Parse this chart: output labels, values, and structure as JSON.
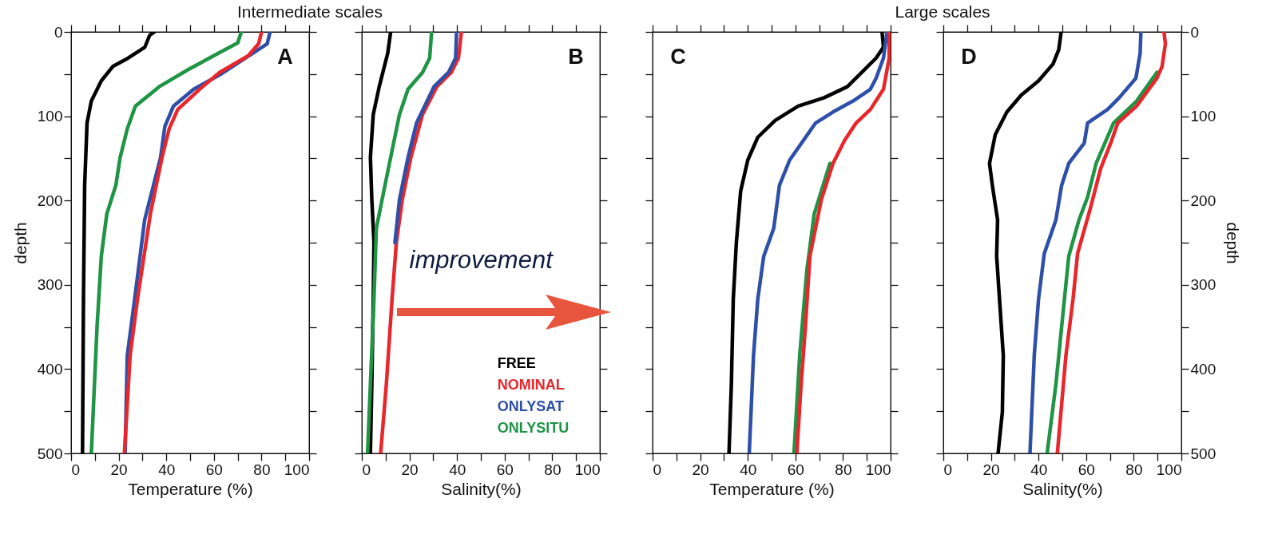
{
  "chart_data": [
    {
      "type": "line",
      "title": "Intermediate scales",
      "xlabel": "Temperature (%)",
      "ylabel": "depth",
      "annotations": [
        "A"
      ],
      "xlim": [
        0,
        100
      ],
      "xticks": [
        0,
        {
          "value": 10,
          "label": null
        },
        20,
        {
          "value": 30,
          "label": null
        },
        40,
        {
          "value": 50,
          "label": null
        },
        60,
        {
          "value": 70,
          "label": null
        },
        80,
        {
          "value": 90,
          "label": null
        },
        100
      ],
      "ylim": [
        500,
        0
      ],
      "yticks": [
        0,
        {
          "value": 50,
          "label": null
        },
        100,
        {
          "value": 150,
          "label": null
        },
        200,
        {
          "value": 250,
          "label": null
        },
        300,
        {
          "value": 350,
          "label": null
        },
        400,
        {
          "value": 450,
          "label": null
        },
        500
      ],
      "line_style": "solid",
      "marker": "none",
      "series": [
        {
          "color": "#000000",
          "x": [
            35,
            33,
            31,
            24,
            17.5,
            12.7,
            8.5,
            6.7,
            5.7,
            5.2,
            4.8
          ],
          "values": [
            0,
            4,
            18,
            31,
            41,
            58,
            82,
            108,
            182,
            317,
            500
          ]
        },
        {
          "color": "#1e9444",
          "x": [
            71.5,
            70,
            62,
            49,
            37,
            27,
            23.6,
            20.6,
            18.8,
            15,
            12.7,
            10.9,
            8.5
          ],
          "values": [
            0,
            13,
            25,
            45,
            65,
            88,
            115,
            149,
            182,
            216,
            266,
            350,
            500
          ]
        },
        {
          "color": "#2e4fa8",
          "x": [
            83.6,
            82.4,
            73.3,
            62.4,
            51.5,
            43,
            39.4,
            37.6,
            30.9,
            26.7,
            23.6,
            22.7
          ],
          "values": [
            0,
            14,
            31,
            51,
            68,
            88,
            112,
            149,
            223,
            317,
            384,
            500
          ]
        },
        {
          "color": "#e8262b",
          "x": [
            80,
            78.8,
            74.5,
            62.4,
            54,
            44.8,
            41.2,
            38.2,
            33.3,
            27.9,
            24.8,
            22.4
          ],
          "values": [
            0,
            14,
            28,
            48,
            68,
            92,
            115,
            149,
            216,
            317,
            384,
            500
          ]
        }
      ]
    },
    {
      "type": "line",
      "xlabel": "Salinity(%)",
      "annotations": [
        "B",
        "improvement"
      ],
      "tick_labels": "x",
      "legend": "bottom right",
      "xlim": [
        0,
        100
      ],
      "xticks": [
        0,
        {
          "value": 10,
          "label": null
        },
        20,
        {
          "value": 30,
          "label": null
        },
        40,
        {
          "value": 50,
          "label": null
        },
        60,
        {
          "value": 70,
          "label": null
        },
        80,
        {
          "value": 90,
          "label": null
        },
        100
      ],
      "ylim": [
        500,
        0
      ],
      "yticks": [
        0,
        {
          "value": 50,
          "label": null
        },
        100,
        {
          "value": 150,
          "label": null
        },
        200,
        {
          "value": 250,
          "label": null
        },
        300,
        {
          "value": 350,
          "label": null
        },
        400,
        {
          "value": 450,
          "label": null
        },
        500
      ],
      "line_style": "solid",
      "marker": "none",
      "series": [
        {
          "name": "FREE",
          "color": "#000000",
          "x": [
            12.1,
            10.9,
            7.3,
            4.8,
            3.6,
            4.2,
            5.1,
            4.8,
            4.2,
            3.6
          ],
          "values": [
            0,
            25,
            65,
            98,
            149,
            199,
            250,
            317,
            418,
            500
          ]
        },
        {
          "name": "NOMINAL",
          "color": "#e8262b",
          "x": [
            41.8,
            40.6,
            37.6,
            31.5,
            25.5,
            20.6,
            17,
            14.5,
            12.7,
            10.3,
            7.9
          ],
          "values": [
            0,
            31,
            48,
            65,
            98,
            149,
            199,
            250,
            317,
            418,
            500
          ]
        },
        {
          "name": "ONLYSAT",
          "color": "#2e4fa8",
          "x": [
            39.8,
            39.4,
            36.4,
            30.3,
            23,
            19.4,
            15.8,
            13.9
          ],
          "values": [
            0,
            31,
            48,
            65,
            108,
            149,
            199,
            250
          ]
        },
        {
          "name": "ONLYSITU",
          "color": "#1e9444",
          "x": [
            29.3,
            28.5,
            25.5,
            19.4,
            15.8,
            12.1,
            8.5,
            6.1,
            5.1,
            3.6,
            2.4
          ],
          "values": [
            0,
            31,
            48,
            68,
            98,
            149,
            199,
            233,
            317,
            418,
            500
          ]
        }
      ]
    },
    {
      "type": "line",
      "title": "Large scales",
      "xlabel": "Temperature (%)",
      "annotations": [
        "C"
      ],
      "tick_labels": "x",
      "xlim": [
        0,
        100
      ],
      "xticks": [
        0,
        {
          "value": 10,
          "label": null
        },
        20,
        {
          "value": 30,
          "label": null
        },
        40,
        {
          "value": 50,
          "label": null
        },
        60,
        {
          "value": 70,
          "label": null
        },
        80,
        {
          "value": 90,
          "label": null
        },
        100
      ],
      "ylim": [
        500,
        0
      ],
      "yticks": [
        0,
        {
          "value": 50,
          "label": null
        },
        100,
        {
          "value": 150,
          "label": null
        },
        200,
        {
          "value": 250,
          "label": null
        },
        300,
        {
          "value": 350,
          "label": null
        },
        400,
        {
          "value": 450,
          "label": null
        },
        500
      ],
      "line_style": "solid",
      "marker": "none",
      "series": [
        {
          "color": "#000000",
          "x": [
            96.4,
            97,
            93.9,
            87.9,
            81.8,
            72.1,
            61.2,
            51.5,
            44.2,
            40,
            37,
            35.2,
            33.9,
            33.1,
            32.1
          ],
          "values": [
            0,
            18,
            31,
            48,
            65,
            78,
            88,
            105,
            125,
            152,
            189,
            250,
            317,
            418,
            500
          ]
        },
        {
          "color": "#2e4fa8",
          "x": [
            98.5,
            97,
            93.9,
            91.5,
            84.2,
            75.8,
            68.5,
            57.6,
            53.3,
            50.9,
            46.7,
            44.2,
            42.4,
            40.6
          ],
          "values": [
            0,
            31,
            55,
            68,
            82,
            95,
            108,
            152,
            182,
            233,
            266,
            317,
            384,
            500
          ]
        },
        {
          "color": "#1e9444",
          "x": [
            74.5,
            67.9,
            64.8,
            61.8,
            59.4
          ],
          "values": [
            156,
            216,
            283,
            384,
            500
          ]
        },
        {
          "color": "#e8262b",
          "x": [
            99.4,
            99.4,
            97,
            91.5,
            85.5,
            80.6,
            75.8,
            70.9,
            66.1,
            64.2,
            62.4,
            60.6
          ],
          "values": [
            0,
            31,
            68,
            92,
            108,
            129,
            156,
            199,
            266,
            350,
            418,
            500
          ]
        }
      ]
    },
    {
      "type": "line",
      "xlabel": "Salinity(%)",
      "y2label": "depth",
      "annotations": [
        "D"
      ],
      "xlim": [
        0,
        100
      ],
      "xticks": [
        0,
        {
          "value": 10,
          "label": null
        },
        20,
        {
          "value": 30,
          "label": null
        },
        40,
        {
          "value": 50,
          "label": null
        },
        60,
        {
          "value": 70,
          "label": null
        },
        80,
        {
          "value": 90,
          "label": null
        },
        100
      ],
      "y2lim": [
        500,
        0
      ],
      "y2ticks": [
        0,
        {
          "value": 50,
          "label": null
        },
        100,
        {
          "value": 150,
          "label": null
        },
        200,
        {
          "value": 250,
          "label": null
        },
        300,
        {
          "value": 350,
          "label": null
        },
        400,
        {
          "value": 450,
          "label": null
        },
        500
      ],
      "line_style": "solid",
      "marker": "none",
      "series": [
        {
          "axis": "y2",
          "color": "#000000",
          "x": [
            49.5,
            48.5,
            46.1,
            40,
            32.7,
            26.7,
            21.8,
            19.4,
            20.6,
            22.8,
            22.4,
            23.6,
            25.2,
            24.8,
            23
          ],
          "values": [
            0,
            21,
            38,
            58,
            75,
            95,
            122,
            156,
            182,
            223,
            266,
            317,
            384,
            451,
            500
          ]
        },
        {
          "axis": "y2",
          "color": "#2e4fa8",
          "x": [
            83,
            82.7,
            80.9,
            73.9,
            69,
            60.6,
            59.2,
            52.7,
            49.7,
            47.3,
            42.4,
            40,
            38.2,
            36.4
          ],
          "values": [
            0,
            25,
            55,
            78,
            92,
            108,
            132,
            156,
            182,
            223,
            263,
            317,
            384,
            500
          ]
        },
        {
          "axis": "y2",
          "color": "#1e9444",
          "x": [
            89.7,
            81.2,
            71.5,
            64.2,
            60.6,
            57,
            52.7,
            49.7,
            47.3,
            43.6
          ],
          "values": [
            48,
            82,
            108,
            156,
            196,
            223,
            266,
            350,
            418,
            500
          ]
        },
        {
          "axis": "y2",
          "color": "#e8262b",
          "x": [
            92.7,
            93.3,
            91.9,
            89.7,
            81.2,
            73.3,
            70.3,
            66.1,
            61.8,
            56.4,
            54.5,
            51.5,
            47.9
          ],
          "values": [
            0,
            14,
            41,
            55,
            88,
            108,
            132,
            162,
            209,
            263,
            317,
            384,
            500
          ]
        }
      ]
    }
  ]
}
